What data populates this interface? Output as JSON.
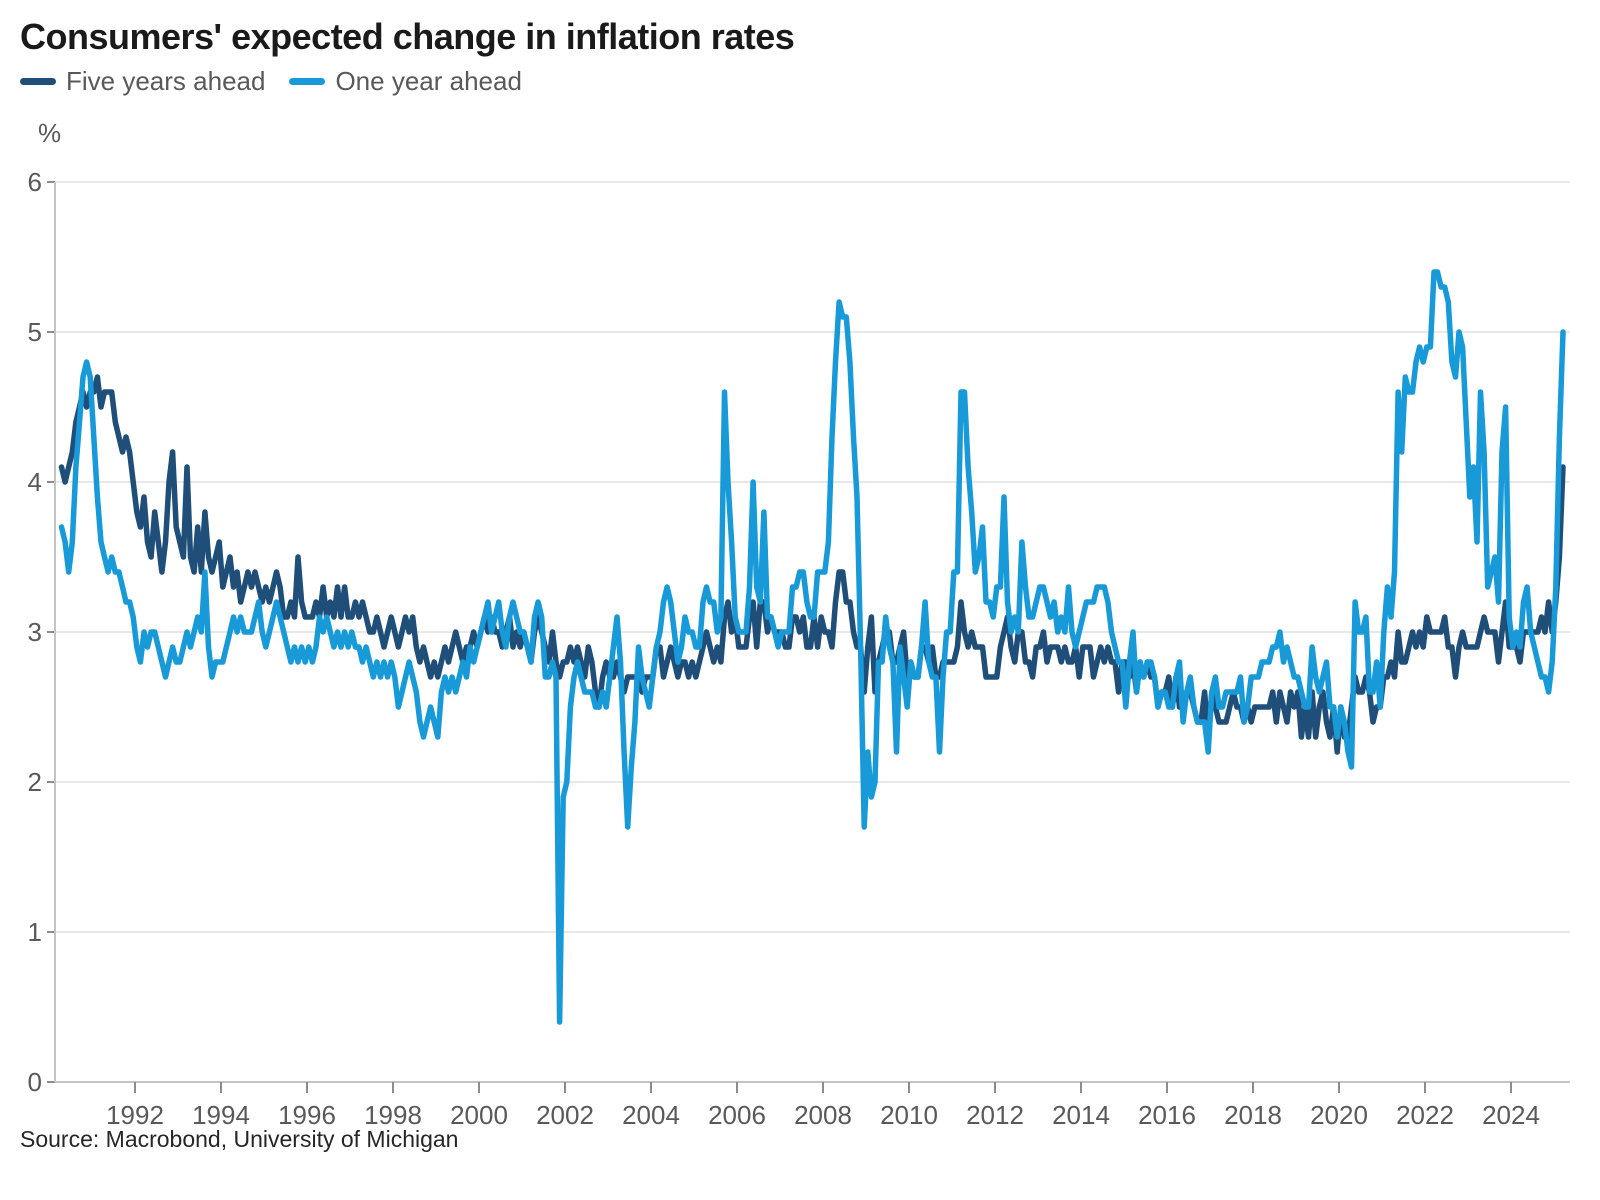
{
  "header": {
    "title": "Consumers' expected change in inflation rates"
  },
  "footer": {
    "source": "Source: Macrobond, University of Michigan"
  },
  "chart_data": {
    "type": "line",
    "title": "Consumers' expected change in inflation rates",
    "ylabel": "%",
    "xlabel": "",
    "ylim": [
      0,
      6
    ],
    "yticks": [
      0,
      1,
      2,
      3,
      4,
      5,
      6
    ],
    "xticks": [
      1992,
      1994,
      1996,
      1998,
      2000,
      2002,
      2004,
      2006,
      2008,
      2010,
      2012,
      2014,
      2016,
      2018,
      2020,
      2022,
      2024
    ],
    "grid": "horizontal",
    "legend_position": "top-left",
    "frequency": "monthly",
    "x_start": "1990-04",
    "x_end": "2025-03",
    "series": [
      {
        "name": "Five years ahead",
        "color": "#1f4e79",
        "values": [
          4.1,
          4.0,
          4.1,
          4.2,
          4.4,
          4.5,
          4.6,
          4.5,
          4.6,
          4.6,
          4.7,
          4.5,
          4.6,
          4.6,
          4.6,
          4.4,
          4.3,
          4.2,
          4.3,
          4.2,
          4.0,
          3.8,
          3.7,
          3.9,
          3.6,
          3.5,
          3.8,
          3.6,
          3.4,
          3.6,
          4.0,
          4.2,
          3.7,
          3.6,
          3.5,
          4.1,
          3.5,
          3.4,
          3.7,
          3.4,
          3.8,
          3.5,
          3.4,
          3.5,
          3.6,
          3.3,
          3.4,
          3.5,
          3.3,
          3.4,
          3.2,
          3.3,
          3.4,
          3.3,
          3.4,
          3.3,
          3.2,
          3.3,
          3.2,
          3.3,
          3.4,
          3.3,
          3.1,
          3.1,
          3.2,
          3.1,
          3.5,
          3.2,
          3.1,
          3.1,
          3.1,
          3.2,
          3.1,
          3.3,
          3.1,
          3.2,
          3.1,
          3.3,
          3.1,
          3.3,
          3.1,
          3.1,
          3.2,
          3.1,
          3.2,
          3.1,
          3.0,
          3.0,
          3.1,
          3.0,
          2.9,
          3.0,
          3.1,
          3.0,
          2.9,
          3.0,
          3.1,
          3.0,
          3.1,
          2.9,
          2.8,
          2.9,
          2.8,
          2.7,
          2.8,
          2.7,
          2.8,
          2.9,
          2.8,
          2.9,
          3.0,
          2.9,
          2.8,
          2.9,
          2.9,
          3.0,
          2.9,
          3.0,
          3.1,
          3.0,
          3.1,
          3.0,
          3.0,
          2.9,
          3.0,
          3.1,
          2.9,
          3.0,
          2.9,
          3.0,
          2.9,
          2.8,
          3.0,
          3.1,
          3.0,
          2.9,
          2.8,
          3.0,
          2.8,
          2.7,
          2.8,
          2.8,
          2.9,
          2.8,
          2.9,
          2.8,
          2.7,
          2.9,
          2.8,
          2.6,
          2.5,
          2.7,
          2.8,
          2.7,
          2.7,
          2.8,
          2.7,
          2.6,
          2.7,
          2.7,
          2.7,
          2.7,
          2.6,
          2.7,
          2.7,
          2.7,
          2.9,
          2.9,
          2.7,
          2.8,
          2.9,
          2.8,
          2.7,
          2.8,
          2.8,
          2.7,
          2.8,
          2.7,
          2.8,
          2.9,
          3.0,
          2.9,
          2.8,
          2.9,
          2.8,
          3.1,
          3.2,
          3.0,
          3.1,
          2.9,
          2.9,
          2.9,
          3.1,
          3.2,
          2.9,
          3.2,
          3.2,
          3.0,
          3.1,
          3.0,
          3.0,
          3.0,
          2.9,
          2.9,
          3.1,
          3.1,
          3.0,
          3.1,
          2.9,
          2.9,
          3.1,
          2.9,
          3.1,
          3.0,
          3.0,
          2.9,
          3.2,
          3.4,
          3.4,
          3.2,
          3.2,
          3.0,
          2.9,
          2.9,
          2.6,
          2.9,
          3.1,
          2.6,
          2.8,
          2.9,
          3.0,
          3.0,
          2.8,
          2.8,
          2.9,
          3.0,
          2.7,
          2.8,
          2.7,
          2.7,
          2.9,
          2.9,
          2.8,
          2.9,
          2.7,
          2.7,
          2.8,
          2.8,
          2.8,
          2.8,
          2.9,
          3.2,
          3.0,
          2.9,
          3.0,
          2.9,
          2.9,
          2.9,
          2.7,
          2.7,
          2.7,
          2.7,
          2.9,
          3.0,
          3.1,
          2.9,
          2.8,
          3.0,
          3.0,
          2.8,
          2.8,
          2.7,
          2.9,
          2.9,
          3.0,
          2.8,
          2.9,
          2.9,
          2.9,
          2.8,
          2.9,
          2.8,
          2.8,
          2.9,
          2.7,
          2.9,
          2.9,
          2.9,
          2.7,
          2.8,
          2.9,
          2.8,
          2.9,
          2.8,
          2.8,
          2.6,
          2.8,
          2.8,
          2.7,
          2.8,
          2.6,
          2.8,
          2.7,
          2.8,
          2.7,
          2.7,
          2.5,
          2.6,
          2.6,
          2.7,
          2.5,
          2.7,
          2.5,
          2.5,
          2.6,
          2.6,
          2.5,
          2.4,
          2.4,
          2.6,
          2.3,
          2.6,
          2.5,
          2.4,
          2.4,
          2.4,
          2.5,
          2.6,
          2.5,
          2.5,
          2.4,
          2.5,
          2.4,
          2.5,
          2.5,
          2.5,
          2.5,
          2.5,
          2.6,
          2.4,
          2.6,
          2.5,
          2.4,
          2.6,
          2.5,
          2.6,
          2.3,
          2.5,
          2.3,
          2.6,
          2.3,
          2.5,
          2.6,
          2.4,
          2.3,
          2.5,
          2.2,
          2.5,
          2.3,
          2.3,
          2.5,
          2.7,
          2.6,
          2.6,
          2.7,
          2.6,
          2.4,
          2.5,
          2.5,
          2.7,
          2.7,
          2.8,
          2.7,
          3.0,
          2.8,
          2.8,
          2.9,
          3.0,
          2.9,
          3.0,
          2.9,
          3.1,
          3.0,
          3.0,
          3.0,
          3.0,
          3.1,
          2.9,
          2.9,
          2.7,
          2.9,
          3.0,
          2.9,
          2.9,
          2.9,
          2.9,
          3.0,
          3.1,
          3.0,
          3.0,
          3.0,
          2.8,
          3.0,
          3.2,
          2.9,
          2.9,
          2.9,
          2.8,
          3.0,
          3.0,
          3.0,
          3.0,
          3.0,
          3.1,
          3.0,
          3.2,
          3.0,
          3.2,
          3.5,
          4.1
        ]
      },
      {
        "name": "One year ahead",
        "color": "#189ad8",
        "values": [
          3.7,
          3.6,
          3.4,
          3.6,
          4.1,
          4.4,
          4.7,
          4.8,
          4.7,
          4.3,
          3.9,
          3.6,
          3.5,
          3.4,
          3.5,
          3.4,
          3.4,
          3.3,
          3.2,
          3.2,
          3.1,
          2.9,
          2.8,
          3.0,
          2.9,
          3.0,
          3.0,
          2.9,
          2.8,
          2.7,
          2.8,
          2.9,
          2.8,
          2.8,
          2.9,
          3.0,
          2.9,
          3.0,
          3.1,
          3.0,
          3.4,
          2.9,
          2.7,
          2.8,
          2.8,
          2.8,
          2.9,
          3.0,
          3.1,
          3.0,
          3.1,
          3.0,
          3.0,
          3.0,
          3.1,
          3.2,
          3.0,
          2.9,
          3.0,
          3.1,
          3.2,
          3.1,
          3.0,
          2.9,
          2.8,
          2.9,
          2.8,
          2.9,
          2.8,
          2.9,
          2.8,
          2.9,
          3.1,
          3.0,
          3.1,
          3.0,
          2.9,
          3.0,
          2.9,
          3.0,
          2.9,
          3.0,
          2.9,
          2.9,
          2.8,
          2.9,
          2.8,
          2.7,
          2.8,
          2.7,
          2.8,
          2.7,
          2.8,
          2.7,
          2.5,
          2.6,
          2.7,
          2.8,
          2.7,
          2.6,
          2.4,
          2.3,
          2.4,
          2.5,
          2.4,
          2.3,
          2.6,
          2.7,
          2.6,
          2.7,
          2.6,
          2.7,
          2.8,
          2.7,
          2.9,
          2.8,
          2.9,
          3.0,
          3.1,
          3.2,
          3.0,
          3.1,
          3.2,
          3.0,
          2.9,
          3.1,
          3.2,
          3.1,
          3.0,
          3.0,
          2.9,
          2.8,
          3.1,
          3.2,
          3.1,
          2.7,
          2.7,
          2.8,
          2.7,
          0.4,
          1.9,
          2.0,
          2.5,
          2.7,
          2.8,
          2.7,
          2.6,
          2.6,
          2.6,
          2.5,
          2.5,
          2.6,
          2.5,
          2.7,
          2.9,
          3.1,
          2.8,
          2.2,
          1.7,
          2.1,
          2.4,
          2.9,
          2.7,
          2.6,
          2.5,
          2.7,
          2.9,
          3.0,
          3.2,
          3.3,
          3.2,
          3.0,
          2.8,
          2.9,
          3.1,
          3.0,
          3.0,
          2.9,
          2.9,
          3.2,
          3.3,
          3.2,
          3.2,
          3.0,
          3.1,
          4.6,
          4.0,
          3.6,
          3.1,
          3.0,
          3.0,
          3.0,
          3.3,
          4.0,
          3.3,
          3.2,
          3.8,
          3.1,
          3.1,
          3.0,
          2.9,
          3.0,
          3.0,
          3.0,
          3.3,
          3.3,
          3.4,
          3.4,
          3.2,
          3.1,
          3.1,
          3.4,
          3.4,
          3.4,
          3.6,
          4.3,
          4.8,
          5.2,
          5.1,
          5.1,
          4.8,
          4.3,
          3.9,
          2.9,
          1.7,
          2.2,
          1.9,
          2.0,
          2.8,
          2.8,
          3.1,
          2.9,
          2.8,
          2.2,
          2.9,
          2.7,
          2.5,
          2.8,
          2.7,
          2.7,
          2.9,
          3.2,
          2.8,
          2.7,
          2.7,
          2.2,
          2.7,
          3.0,
          3.0,
          3.4,
          3.4,
          4.6,
          4.6,
          4.1,
          3.8,
          3.4,
          3.5,
          3.7,
          3.2,
          3.2,
          3.1,
          3.3,
          3.3,
          3.9,
          3.2,
          3.0,
          3.1,
          3.0,
          3.6,
          3.3,
          3.1,
          3.1,
          3.2,
          3.3,
          3.3,
          3.2,
          3.1,
          3.2,
          3.0,
          3.1,
          3.0,
          3.3,
          3.0,
          2.9,
          3.0,
          3.1,
          3.2,
          3.2,
          3.2,
          3.3,
          3.3,
          3.3,
          3.2,
          3.0,
          2.9,
          2.8,
          2.8,
          2.5,
          2.8,
          3.0,
          2.6,
          2.8,
          2.7,
          2.8,
          2.8,
          2.7,
          2.5,
          2.6,
          2.6,
          2.5,
          2.5,
          2.7,
          2.8,
          2.4,
          2.6,
          2.7,
          2.5,
          2.4,
          2.4,
          2.4,
          2.2,
          2.6,
          2.7,
          2.5,
          2.5,
          2.6,
          2.6,
          2.6,
          2.6,
          2.7,
          2.4,
          2.5,
          2.7,
          2.7,
          2.7,
          2.8,
          2.8,
          2.8,
          2.9,
          2.9,
          3.0,
          2.8,
          2.9,
          2.8,
          2.7,
          2.7,
          2.6,
          2.5,
          2.5,
          2.9,
          2.7,
          2.6,
          2.7,
          2.8,
          2.5,
          2.5,
          2.3,
          2.5,
          2.4,
          2.2,
          2.1,
          3.2,
          3.0,
          3.0,
          3.1,
          2.6,
          2.6,
          2.8,
          2.5,
          3.0,
          3.3,
          3.1,
          3.4,
          4.6,
          4.2,
          4.7,
          4.6,
          4.6,
          4.8,
          4.9,
          4.8,
          4.9,
          4.9,
          5.4,
          5.4,
          5.3,
          5.3,
          5.2,
          4.8,
          4.7,
          5.0,
          4.9,
          4.4,
          3.9,
          4.1,
          3.6,
          4.6,
          4.2,
          3.3,
          3.4,
          3.5,
          3.2,
          4.2,
          4.5,
          3.1,
          2.9,
          3.0,
          2.9,
          3.2,
          3.3,
          3.0,
          2.9,
          2.8,
          2.7,
          2.7,
          2.6,
          2.8,
          3.3,
          4.3,
          5.0
        ]
      }
    ]
  }
}
